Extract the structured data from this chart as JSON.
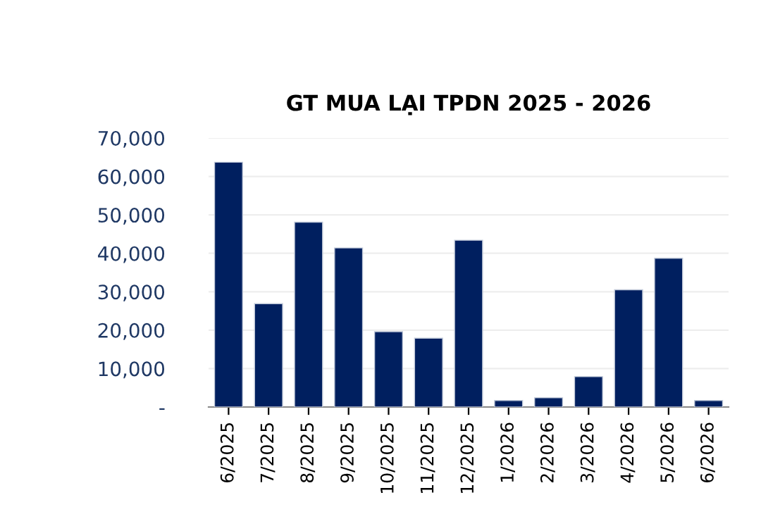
{
  "chart_data": {
    "type": "bar",
    "title": "GT MUA LẠI TPDN 2025 - 2026",
    "categories": [
      "6/2025",
      "7/2025",
      "8/2025",
      "9/2025",
      "10/2025",
      "11/2025",
      "12/2025",
      "1/2026",
      "2/2026",
      "3/2026",
      "4/2026",
      "5/2026",
      "6/2026"
    ],
    "values": [
      63700,
      26900,
      48100,
      41400,
      19600,
      17900,
      43400,
      1700,
      2400,
      7900,
      30500,
      38700,
      1700
    ],
    "color": "#001f5f",
    "ylim": [
      0,
      70000
    ],
    "yticks": [
      {
        "value": 0,
        "label": "-"
      },
      {
        "value": 10000,
        "label": "10,000"
      },
      {
        "value": 20000,
        "label": "20,000"
      },
      {
        "value": 30000,
        "label": "30,000"
      },
      {
        "value": 40000,
        "label": "40,000"
      },
      {
        "value": 50000,
        "label": "50,000"
      },
      {
        "value": 60000,
        "label": "60,000"
      },
      {
        "value": 70000,
        "label": "70,000"
      }
    ],
    "grid": "y"
  }
}
